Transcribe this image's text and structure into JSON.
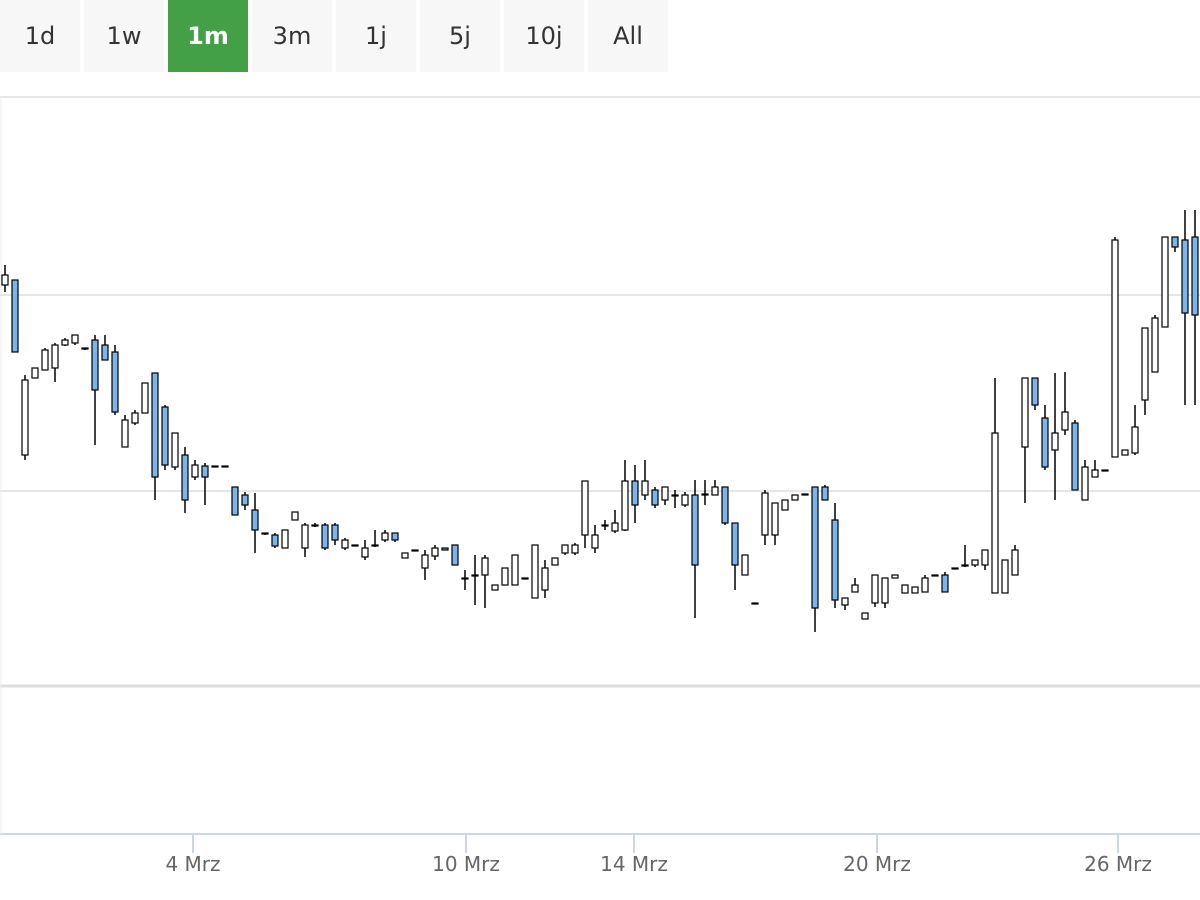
{
  "range_buttons": {
    "labels": [
      "1d",
      "1w",
      "1m",
      "3m",
      "1j",
      "5j",
      "10j",
      "All"
    ],
    "selected": 2
  },
  "chart_data": {
    "type": "candlestick",
    "x": [
      0,
      1,
      2,
      3,
      4,
      5,
      6,
      7,
      8,
      9,
      10,
      11,
      12,
      13,
      14,
      15,
      16,
      17,
      18,
      19,
      20,
      21,
      22,
      23,
      24,
      25,
      26,
      27,
      28,
      29,
      30,
      31,
      32,
      33,
      34,
      35,
      36,
      37,
      38,
      39,
      40,
      41,
      42,
      43,
      44,
      45,
      46,
      47,
      48,
      49,
      50,
      51,
      52,
      53,
      54,
      55,
      56,
      57,
      58,
      59,
      60,
      61,
      62,
      63,
      64,
      65,
      66,
      67,
      68,
      69,
      70,
      71,
      72,
      73,
      74,
      75,
      76,
      77,
      78,
      79,
      80,
      81,
      82,
      83,
      84,
      85,
      86,
      87,
      88,
      89,
      90,
      91,
      92,
      93,
      94,
      95,
      96,
      97,
      98,
      99,
      100,
      101,
      102,
      103,
      104,
      105,
      106,
      107,
      108,
      109,
      110,
      111,
      112,
      113,
      114,
      115,
      116,
      117,
      118,
      119
    ],
    "open": [
      402,
      407,
      232,
      309,
      317,
      319,
      342,
      344,
      339,
      347,
      342,
      335,
      240,
      264,
      274,
      314,
      280,
      220,
      232,
      210,
      221,
      221,
      221,
      200,
      192,
      177,
      154,
      152,
      139,
      167,
      139,
      162,
      162,
      162,
      139,
      142,
      130,
      142,
      147,
      154,
      129,
      137,
      119,
      131,
      139,
      142,
      109,
      112,
      112,
      97,
      102,
      102,
      109,
      89,
      97,
      122,
      134,
      134,
      152,
      139,
      162,
      156,
      157,
      206,
      192,
      197,
      187,
      192,
      182,
      192,
      193,
      192,
      200,
      164,
      112,
      84,
      152,
      152,
      177,
      187,
      193,
      200,
      200,
      167,
      82,
      95,
      68,
      84,
      84,
      109,
      94,
      94,
      95,
      112,
      112,
      119,
      122,
      122,
      122,
      94,
      94,
      112,
      240,
      309,
      269,
      237,
      257,
      264,
      187,
      210,
      217,
      230,
      232,
      234,
      287,
      315,
      360,
      450,
      447,
      450
    ],
    "high": [
      422,
      407,
      312,
      319,
      339,
      344,
      349,
      352,
      339,
      352,
      352,
      342,
      272,
      277,
      304,
      314,
      282,
      254,
      240,
      227,
      224,
      221,
      221,
      200,
      195,
      194,
      154,
      154,
      157,
      175,
      164,
      164,
      164,
      164,
      149,
      142,
      147,
      157,
      157,
      154,
      134,
      137,
      137,
      142,
      139,
      142,
      117,
      132,
      132,
      102,
      119,
      132,
      109,
      142,
      127,
      129,
      142,
      144,
      206,
      162,
      167,
      177,
      227,
      222,
      227,
      200,
      200,
      197,
      195,
      207,
      207,
      207,
      200,
      164,
      132,
      84,
      197,
      184,
      187,
      192,
      193,
      200,
      202,
      184,
      89,
      109,
      74,
      112,
      109,
      112,
      102,
      100,
      112,
      112,
      115,
      119,
      142,
      127,
      137,
      309,
      127,
      142,
      309,
      309,
      282,
      314,
      315,
      267,
      227,
      227,
      217,
      450,
      237,
      282,
      359,
      372,
      450,
      450,
      477,
      477
    ],
    "low": [
      395,
      335,
      227,
      309,
      317,
      305,
      341,
      342,
      337,
      242,
      327,
      272,
      240,
      262,
      274,
      187,
      217,
      217,
      174,
      207,
      182,
      221,
      221,
      172,
      177,
      134,
      152,
      139,
      139,
      167,
      130,
      160,
      137,
      142,
      137,
      142,
      127,
      140,
      145,
      145,
      129,
      137,
      107,
      127,
      137,
      122,
      97,
      82,
      79,
      97,
      102,
      102,
      109,
      89,
      89,
      122,
      132,
      132,
      139,
      134,
      157,
      154,
      156,
      164,
      187,
      179,
      182,
      179,
      180,
      69,
      182,
      192,
      162,
      97,
      112,
      84,
      142,
      142,
      177,
      187,
      193,
      55,
      187,
      79,
      77,
      95,
      68,
      80,
      79,
      109,
      94,
      94,
      95,
      112,
      95,
      119,
      120,
      120,
      117,
      94,
      94,
      112,
      184,
      277,
      217,
      187,
      252,
      197,
      187,
      210,
      217,
      230,
      232,
      232,
      272,
      315,
      360,
      435,
      282,
      282
    ],
    "close": [
      412,
      335,
      307,
      319,
      337,
      342,
      347,
      352,
      339,
      297,
      327,
      275,
      267,
      274,
      304,
      210,
      222,
      254,
      187,
      222,
      210,
      221,
      221,
      172,
      182,
      157,
      154,
      141,
      157,
      175,
      162,
      162,
      139,
      147,
      147,
      142,
      139,
      142,
      154,
      147,
      134,
      137,
      132,
      139,
      137,
      122,
      109,
      112,
      129,
      102,
      119,
      132,
      109,
      142,
      119,
      129,
      142,
      142,
      206,
      152,
      162,
      164,
      206,
      182,
      206,
      182,
      200,
      192,
      192,
      122,
      193,
      200,
      164,
      122,
      132,
      84,
      194,
      184,
      187,
      192,
      193,
      79,
      187,
      87,
      89,
      102,
      74,
      112,
      109,
      112,
      102,
      100,
      109,
      112,
      95,
      119,
      122,
      127,
      137,
      254,
      127,
      137,
      309,
      282,
      220,
      254,
      275,
      197,
      220,
      217,
      217,
      447,
      237,
      260,
      359,
      369,
      450,
      440,
      374,
      372
    ],
    "up_color": "#ffffff",
    "down_color": "#7cb5ec",
    "line_color": "#000000",
    "xlim": [
      -0.5,
      119.5
    ],
    "xticks": [
      {
        "value": 18.8,
        "label": "4 Mrz"
      },
      {
        "value": 46.1,
        "label": "10 Mrz"
      },
      {
        "value": 62.9,
        "label": "14 Mrz"
      },
      {
        "value": 87.2,
        "label": "20 Mrz"
      },
      {
        "value": 111.3,
        "label": "26 Mrz"
      }
    ],
    "ylim": [
      0,
      590
    ],
    "yticks": [
      196,
      392
    ],
    "grid": true
  }
}
